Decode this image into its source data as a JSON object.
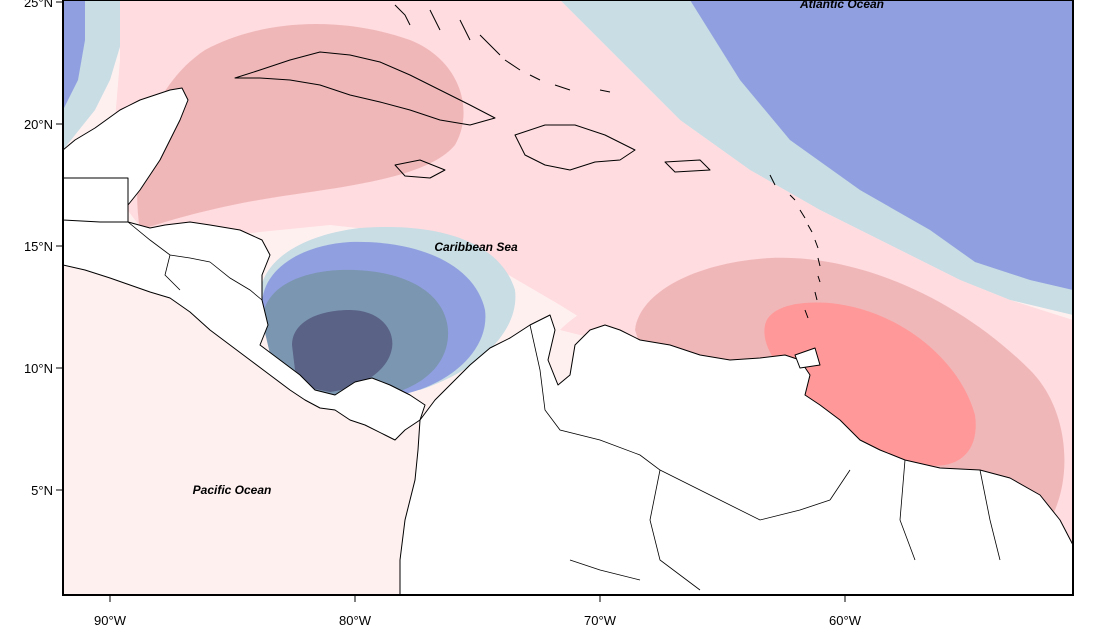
{
  "map": {
    "x_ticks": [
      {
        "label": "90°W",
        "lon": -90
      },
      {
        "label": "80°W",
        "lon": -80
      },
      {
        "label": "70°W",
        "lon": -70
      },
      {
        "label": "60°W",
        "lon": -60
      }
    ],
    "y_ticks": [
      {
        "label": "25°N",
        "lat": 25
      },
      {
        "label": "20°N",
        "lat": 20
      },
      {
        "label": "15°N",
        "lat": 15
      },
      {
        "label": "10°N",
        "lat": 10
      },
      {
        "label": "5°N",
        "lat": 5
      }
    ],
    "labels": {
      "atlantic": "Atlantic Ocean",
      "caribbean": "Caribbean Sea",
      "pacific": "Pacific Ocean"
    },
    "colors": {
      "negative_strongest": "#5a6286",
      "negative_strong": "#7b96b0",
      "negative_moderate": "#909fe0",
      "negative_weak": "#c8dde4",
      "neutral": "#fff0f0",
      "positive_weak": "#ffdcdf",
      "positive_moderate": "#f0b7b9",
      "positive_strong": "#ff9999",
      "land": "#ffffff"
    }
  }
}
